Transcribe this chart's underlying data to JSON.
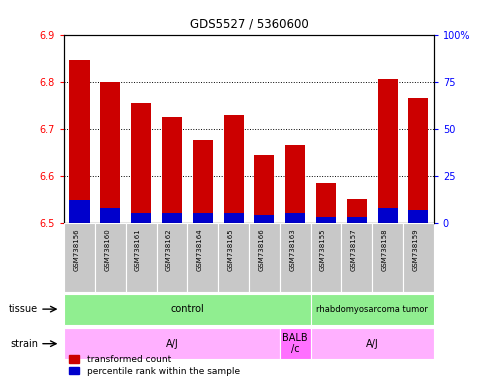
{
  "title": "GDS5527 / 5360600",
  "samples": [
    "GSM738156",
    "GSM738160",
    "GSM738161",
    "GSM738162",
    "GSM738164",
    "GSM738165",
    "GSM738166",
    "GSM738163",
    "GSM738155",
    "GSM738157",
    "GSM738158",
    "GSM738159"
  ],
  "red_values": [
    6.845,
    6.8,
    6.755,
    6.725,
    6.675,
    6.73,
    6.645,
    6.665,
    6.585,
    6.55,
    6.805,
    6.765
  ],
  "blue_pct": [
    12,
    8,
    5,
    5,
    5,
    5,
    4,
    5,
    3,
    3,
    8,
    7
  ],
  "ymin": 6.5,
  "ymax": 6.9,
  "y2min": 0,
  "y2max": 100,
  "yticks": [
    6.5,
    6.6,
    6.7,
    6.8,
    6.9
  ],
  "y2ticks": [
    0,
    25,
    50,
    75,
    100
  ],
  "tissue_labels": [
    {
      "label": "control",
      "start": 0,
      "end": 8,
      "color": "#90EE90"
    },
    {
      "label": "rhabdomyosarcoma tumor",
      "start": 8,
      "end": 12,
      "color": "#90EE90"
    }
  ],
  "strain_labels": [
    {
      "label": "A/J",
      "start": 0,
      "end": 7,
      "color": "#FFB0FF"
    },
    {
      "label": "BALB\n/c",
      "start": 7,
      "end": 8,
      "color": "#FF70FF"
    },
    {
      "label": "A/J",
      "start": 8,
      "end": 12,
      "color": "#FFB0FF"
    }
  ],
  "tissue_row_label": "tissue",
  "strain_row_label": "strain",
  "legend_red": "transformed count",
  "legend_blue": "percentile rank within the sample",
  "bar_width": 0.65,
  "red_color": "#CC0000",
  "blue_color": "#0000CC",
  "sample_bg_color": "#C8C8C8"
}
